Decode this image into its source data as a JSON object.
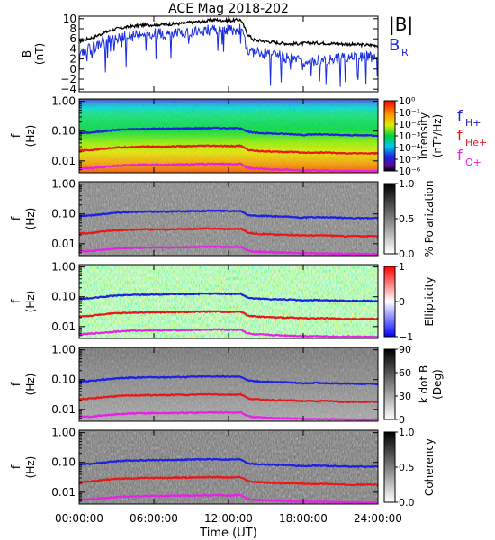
{
  "title": "ACE Mag 2018-202",
  "xlabel": "Time (UT)",
  "xticks": [
    "00:00:00",
    "06:00:00",
    "12:00:00",
    "18:00:00",
    "24:00:00"
  ],
  "line_labels": [
    {
      "text": "f",
      "sub": "H+",
      "color": "#2020c8"
    },
    {
      "text": "f",
      "sub": "He+",
      "color": "#e01818"
    },
    {
      "text": "f",
      "sub": "O+",
      "color": "#e020e0"
    }
  ],
  "chart_data": [
    {
      "type": "line",
      "panel": "magnetic-field",
      "ylabel": "B",
      "yunit": "(nT)",
      "ylim": [
        -4.5,
        10.5
      ],
      "yticks": [
        "10",
        "8",
        "6",
        "4",
        "2",
        "0",
        "−2",
        "−4"
      ],
      "ytick_values": [
        10,
        8,
        6,
        4,
        2,
        0,
        -2,
        -4
      ],
      "x_hours": [
        0,
        1,
        2,
        3,
        4,
        5,
        6,
        7,
        8,
        9,
        10,
        11,
        12,
        13,
        13.5,
        14,
        15,
        16,
        17,
        18,
        19,
        20,
        21,
        22,
        23,
        24
      ],
      "series": [
        {
          "name": "|B|",
          "color": "#000000",
          "values": [
            5.5,
            6.2,
            7.2,
            8.0,
            8.4,
            8.7,
            8.8,
            8.9,
            9.0,
            9.3,
            9.5,
            9.8,
            9.6,
            9.8,
            7.0,
            5.8,
            5.5,
            5.2,
            5.0,
            5.1,
            5.2,
            5.1,
            5.0,
            4.9,
            4.8,
            4.7
          ]
        },
        {
          "name": "BR",
          "color": "#1a2ee0",
          "values": [
            3.5,
            4.0,
            5.5,
            6.2,
            6.5,
            6.8,
            7.0,
            7.0,
            7.2,
            7.5,
            7.6,
            7.9,
            7.7,
            8.0,
            4.0,
            3.5,
            3.0,
            2.8,
            2.0,
            1.5,
            1.8,
            2.0,
            2.2,
            2.5,
            2.4,
            2.4
          ]
        }
      ]
    },
    {
      "type": "heatmap",
      "panel": "intensity",
      "ylabel": "f",
      "yunit": "(Hz)",
      "ylim": [
        0.004,
        1.2
      ],
      "yscale": "log",
      "yticks": [
        "1.00",
        "0.10",
        "0.01"
      ],
      "ytick_values": [
        1,
        0.1,
        0.01
      ],
      "colorbar": {
        "label": "Intensity",
        "unit": "(nT²/Hz)",
        "colormap": "rainbow",
        "ticks": [
          "10⁰",
          "10⁻¹",
          "10⁻²",
          "10⁻³",
          "10⁻⁴",
          "10⁻⁵",
          "10⁻⁶"
        ]
      }
    },
    {
      "type": "heatmap",
      "panel": "polarization",
      "ylabel": "f",
      "yunit": "(Hz)",
      "ylim": [
        0.004,
        1.2
      ],
      "yscale": "log",
      "yticks": [
        "1.00",
        "0.10",
        "0.01"
      ],
      "ytick_values": [
        1,
        0.1,
        0.01
      ],
      "colorbar": {
        "label": "% Polarization",
        "colormap": "gray",
        "ticks": [
          "1.0",
          "0.5",
          "0.0"
        ],
        "tick_values": [
          1,
          0.5,
          0
        ]
      }
    },
    {
      "type": "heatmap",
      "panel": "ellipticity",
      "ylabel": "f",
      "yunit": "(Hz)",
      "ylim": [
        0.004,
        1.2
      ],
      "yscale": "log",
      "yticks": [
        "1.00",
        "0.10",
        "0.01"
      ],
      "ytick_values": [
        1,
        0.1,
        0.01
      ],
      "colorbar": {
        "label": "Ellipticity",
        "colormap": "blue-white-red",
        "ticks": [
          "1",
          "0",
          "−1"
        ],
        "tick_values": [
          1,
          0,
          -1
        ]
      }
    },
    {
      "type": "heatmap",
      "panel": "k-dot-b",
      "ylabel": "f",
      "yunit": "(Hz)",
      "ylim": [
        0.004,
        1.2
      ],
      "yscale": "log",
      "yticks": [
        "1.00",
        "0.10",
        "0.01"
      ],
      "ytick_values": [
        1,
        0.1,
        0.01
      ],
      "colorbar": {
        "label": "k dot B",
        "unit": "(Deg)",
        "colormap": "gray",
        "ticks": [
          "90",
          "60",
          "30",
          "0"
        ],
        "tick_values": [
          90,
          60,
          30,
          0
        ]
      }
    },
    {
      "type": "heatmap",
      "panel": "coherency",
      "ylabel": "f",
      "yunit": "(Hz)",
      "ylim": [
        0.004,
        1.2
      ],
      "yscale": "log",
      "yticks": [
        "1.00",
        "0.10",
        "0.01"
      ],
      "ytick_values": [
        1,
        0.1,
        0.01
      ],
      "colorbar": {
        "label": "Coherency",
        "colormap": "gray",
        "ticks": [
          "1.0",
          "0.5",
          "0.0"
        ],
        "tick_values": [
          1,
          0.5,
          0
        ]
      }
    }
  ],
  "gyrofrequency_lines": {
    "x_hours": [
      0,
      1,
      2,
      3,
      4,
      5,
      6,
      7,
      8,
      9,
      10,
      11,
      12,
      13,
      13.5,
      14,
      15,
      16,
      17,
      18,
      19,
      20,
      21,
      22,
      23,
      24
    ],
    "series": [
      {
        "name": "H+",
        "color": "#2020e0",
        "values": [
          0.085,
          0.09,
          0.1,
          0.11,
          0.115,
          0.118,
          0.12,
          0.12,
          0.122,
          0.124,
          0.126,
          0.128,
          0.125,
          0.126,
          0.095,
          0.088,
          0.085,
          0.082,
          0.08,
          0.075,
          0.078,
          0.076,
          0.074,
          0.073,
          0.072,
          0.072
        ]
      },
      {
        "name": "He+",
        "color": "#e81818",
        "values": [
          0.022,
          0.023,
          0.026,
          0.028,
          0.029,
          0.03,
          0.03,
          0.03,
          0.031,
          0.031,
          0.032,
          0.032,
          0.031,
          0.032,
          0.024,
          0.022,
          0.021,
          0.02,
          0.02,
          0.019,
          0.019,
          0.019,
          0.018,
          0.018,
          0.018,
          0.018
        ]
      },
      {
        "name": "O+",
        "color": "#e820e8",
        "values": [
          0.0055,
          0.0058,
          0.0063,
          0.0068,
          0.0072,
          0.0074,
          0.0075,
          0.0075,
          0.0076,
          0.0077,
          0.0078,
          0.008,
          0.0078,
          0.0079,
          0.006,
          0.0055,
          0.0053,
          0.0051,
          0.005,
          0.0048,
          0.0048,
          0.0047,
          0.0046,
          0.0046,
          0.0045,
          0.0045
        ]
      }
    ]
  }
}
